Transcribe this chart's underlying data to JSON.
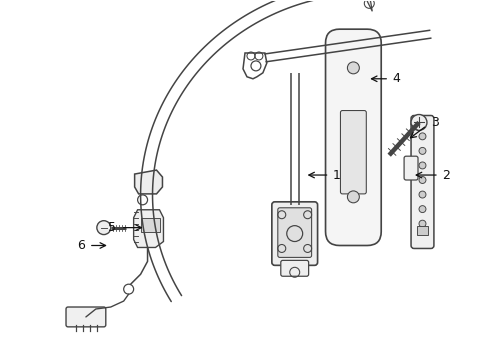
{
  "background_color": "#ffffff",
  "line_color": "#444444",
  "line_width": 1.1,
  "label_color": "#111111",
  "label_fontsize": 9,
  "arrow_color": "#111111"
}
